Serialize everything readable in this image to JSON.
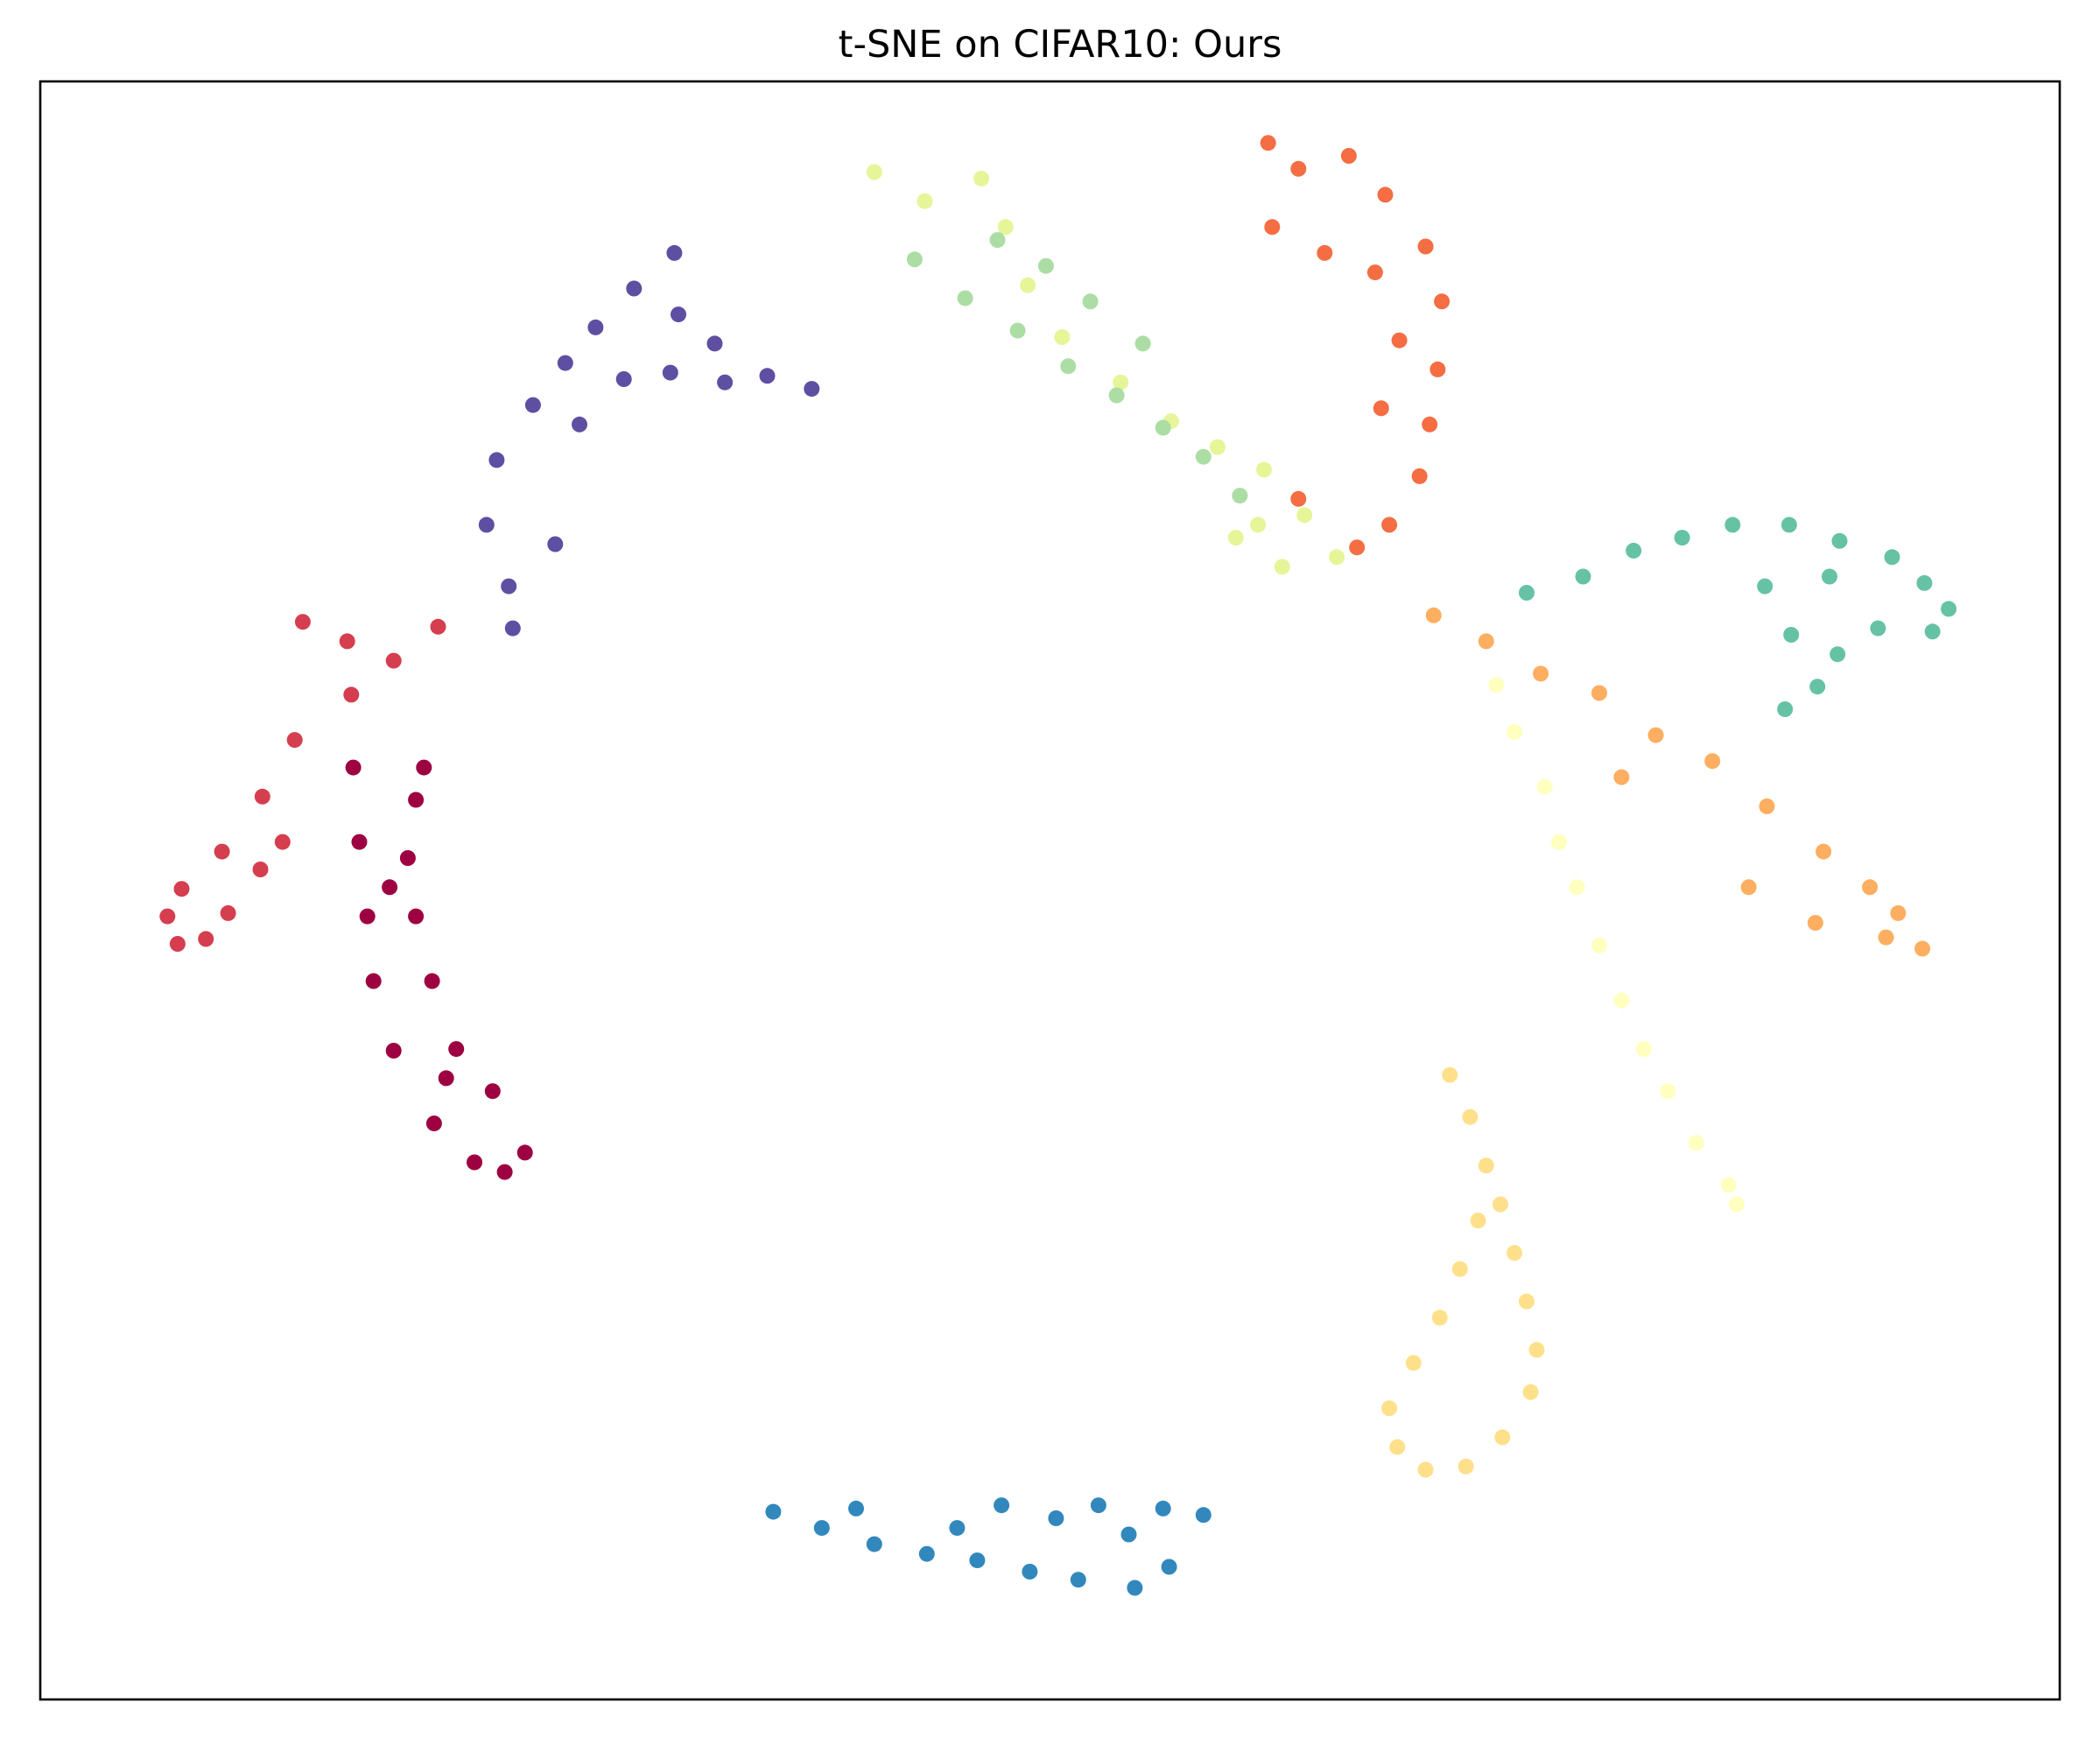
{
  "chart_data": {
    "type": "scatter",
    "title": "t-SNE on CIFAR10: Ours",
    "xlabel": "",
    "ylabel": "",
    "xlim": [
      0,
      100
    ],
    "ylim": [
      0,
      100
    ],
    "x_ticks_shown": false,
    "y_ticks_shown": false,
    "legend": "none",
    "grid": false,
    "palette": [
      "#9e0142",
      "#d53e4f",
      "#f46d43",
      "#fdae61",
      "#fee08b",
      "#ffffbf",
      "#e6f598",
      "#abdda4",
      "#66c2a5",
      "#3288bd",
      "#5e4fa2"
    ],
    "series": [
      {
        "color": "#9e0142",
        "points": [
          [
            15.5,
            57.6
          ],
          [
            15.8,
            53.0
          ],
          [
            16.2,
            48.4
          ],
          [
            16.5,
            44.4
          ],
          [
            17.5,
            40.1
          ],
          [
            19.5,
            35.6
          ],
          [
            21.5,
            33.2
          ],
          [
            23.0,
            32.6
          ],
          [
            24.0,
            33.8
          ],
          [
            22.4,
            37.6
          ],
          [
            20.6,
            40.2
          ],
          [
            19.4,
            44.4
          ],
          [
            18.6,
            48.4
          ],
          [
            18.2,
            52.0
          ],
          [
            18.6,
            55.6
          ],
          [
            19.0,
            57.6
          ],
          [
            17.3,
            50.2
          ],
          [
            20.1,
            38.4
          ]
        ]
      },
      {
        "color": "#d53e4f",
        "points": [
          [
            13.0,
            66.6
          ],
          [
            15.2,
            65.4
          ],
          [
            17.5,
            64.2
          ],
          [
            19.7,
            66.3
          ],
          [
            15.4,
            62.1
          ],
          [
            12.6,
            59.3
          ],
          [
            11.0,
            55.8
          ],
          [
            9.0,
            52.4
          ],
          [
            7.0,
            50.1
          ],
          [
            6.3,
            48.4
          ],
          [
            6.8,
            46.7
          ],
          [
            8.2,
            47.0
          ],
          [
            9.3,
            48.6
          ],
          [
            10.9,
            51.3
          ],
          [
            12.0,
            53.0
          ]
        ]
      },
      {
        "color": "#f46d43",
        "points": [
          [
            60.8,
            96.2
          ],
          [
            62.3,
            94.6
          ],
          [
            64.8,
            95.4
          ],
          [
            66.6,
            93.0
          ],
          [
            68.6,
            89.8
          ],
          [
            69.4,
            86.4
          ],
          [
            69.2,
            82.2
          ],
          [
            68.8,
            78.8
          ],
          [
            68.3,
            75.6
          ],
          [
            66.8,
            72.6
          ],
          [
            65.2,
            71.2
          ],
          [
            62.3,
            74.2
          ],
          [
            66.4,
            79.8
          ],
          [
            67.3,
            84.0
          ],
          [
            66.1,
            88.2
          ],
          [
            61.0,
            91.0
          ],
          [
            63.6,
            89.4
          ]
        ]
      },
      {
        "color": "#fdae61",
        "points": [
          [
            69.0,
            67.0
          ],
          [
            71.6,
            65.4
          ],
          [
            74.3,
            63.4
          ],
          [
            77.2,
            62.2
          ],
          [
            80.0,
            59.6
          ],
          [
            82.8,
            58.0
          ],
          [
            85.5,
            55.2
          ],
          [
            88.3,
            52.4
          ],
          [
            90.6,
            50.2
          ],
          [
            92.0,
            48.6
          ],
          [
            93.2,
            46.4
          ],
          [
            91.4,
            47.1
          ],
          [
            87.9,
            48.0
          ],
          [
            84.6,
            50.2
          ],
          [
            78.3,
            57.0
          ]
        ]
      },
      {
        "color": "#fee08b",
        "points": [
          [
            69.8,
            38.6
          ],
          [
            70.8,
            36.0
          ],
          [
            71.6,
            33.0
          ],
          [
            72.3,
            30.6
          ],
          [
            73.0,
            27.6
          ],
          [
            73.6,
            24.6
          ],
          [
            74.1,
            21.6
          ],
          [
            73.8,
            19.0
          ],
          [
            72.4,
            16.2
          ],
          [
            70.6,
            14.4
          ],
          [
            68.6,
            14.2
          ],
          [
            67.2,
            15.6
          ],
          [
            66.8,
            18.0
          ],
          [
            68.0,
            20.8
          ],
          [
            69.3,
            23.6
          ],
          [
            70.3,
            26.6
          ],
          [
            71.2,
            29.6
          ]
        ]
      },
      {
        "color": "#ffffbf",
        "points": [
          [
            72.1,
            62.7
          ],
          [
            73.0,
            59.8
          ],
          [
            74.5,
            56.4
          ],
          [
            75.2,
            53.0
          ],
          [
            76.1,
            50.2
          ],
          [
            77.2,
            46.6
          ],
          [
            78.3,
            43.2
          ],
          [
            79.4,
            40.2
          ],
          [
            80.6,
            37.6
          ],
          [
            82.0,
            34.4
          ],
          [
            83.6,
            31.8
          ],
          [
            84.0,
            30.6
          ]
        ]
      },
      {
        "color": "#e6f598",
        "points": [
          [
            41.3,
            94.4
          ],
          [
            43.8,
            92.6
          ],
          [
            46.6,
            94.0
          ],
          [
            47.8,
            91.0
          ],
          [
            48.9,
            87.4
          ],
          [
            50.6,
            84.2
          ],
          [
            53.5,
            81.4
          ],
          [
            56.0,
            79.0
          ],
          [
            58.3,
            77.4
          ],
          [
            60.6,
            76.0
          ],
          [
            62.6,
            73.2
          ],
          [
            64.2,
            70.6
          ],
          [
            59.2,
            71.8
          ],
          [
            61.5,
            70.0
          ],
          [
            60.3,
            72.6
          ]
        ]
      },
      {
        "color": "#abdda4",
        "points": [
          [
            43.3,
            89.0
          ],
          [
            45.8,
            86.6
          ],
          [
            48.4,
            84.6
          ],
          [
            50.9,
            82.4
          ],
          [
            53.3,
            80.6
          ],
          [
            55.6,
            78.6
          ],
          [
            57.6,
            76.8
          ],
          [
            59.4,
            74.4
          ],
          [
            47.4,
            90.2
          ],
          [
            49.8,
            88.6
          ],
          [
            52.0,
            86.4
          ],
          [
            54.6,
            83.8
          ]
        ]
      },
      {
        "color": "#66c2a5",
        "points": [
          [
            73.6,
            68.4
          ],
          [
            76.4,
            69.4
          ],
          [
            78.9,
            71.0
          ],
          [
            81.3,
            71.8
          ],
          [
            83.8,
            72.6
          ],
          [
            86.6,
            72.6
          ],
          [
            89.1,
            71.6
          ],
          [
            91.7,
            70.6
          ],
          [
            93.3,
            69.0
          ],
          [
            94.5,
            67.4
          ],
          [
            93.7,
            66.0
          ],
          [
            91.0,
            66.2
          ],
          [
            89.0,
            64.6
          ],
          [
            88.0,
            62.6
          ],
          [
            86.4,
            61.2
          ],
          [
            88.6,
            69.4
          ],
          [
            85.4,
            68.8
          ],
          [
            86.7,
            65.8
          ]
        ]
      },
      {
        "color": "#3288bd",
        "points": [
          [
            36.3,
            11.6
          ],
          [
            38.7,
            10.6
          ],
          [
            41.3,
            9.6
          ],
          [
            43.9,
            9.0
          ],
          [
            46.4,
            8.6
          ],
          [
            49.0,
            7.9
          ],
          [
            51.4,
            7.4
          ],
          [
            54.2,
            6.9
          ],
          [
            55.9,
            8.2
          ],
          [
            53.9,
            10.2
          ],
          [
            55.6,
            11.8
          ],
          [
            57.6,
            11.4
          ],
          [
            52.4,
            12.0
          ],
          [
            50.3,
            11.2
          ],
          [
            47.6,
            12.0
          ],
          [
            45.4,
            10.6
          ],
          [
            40.4,
            11.8
          ]
        ]
      },
      {
        "color": "#5e4fa2",
        "points": [
          [
            31.4,
            89.4
          ],
          [
            29.4,
            87.2
          ],
          [
            27.5,
            84.8
          ],
          [
            26.0,
            82.6
          ],
          [
            24.4,
            80.0
          ],
          [
            22.6,
            76.6
          ],
          [
            22.1,
            72.6
          ],
          [
            23.2,
            68.8
          ],
          [
            23.4,
            66.2
          ],
          [
            25.5,
            71.4
          ],
          [
            26.7,
            78.8
          ],
          [
            28.9,
            81.6
          ],
          [
            31.2,
            82.0
          ],
          [
            33.9,
            81.4
          ],
          [
            36.0,
            81.8
          ],
          [
            38.2,
            81.0
          ],
          [
            31.6,
            85.6
          ],
          [
            33.4,
            83.8
          ]
        ]
      }
    ]
  }
}
